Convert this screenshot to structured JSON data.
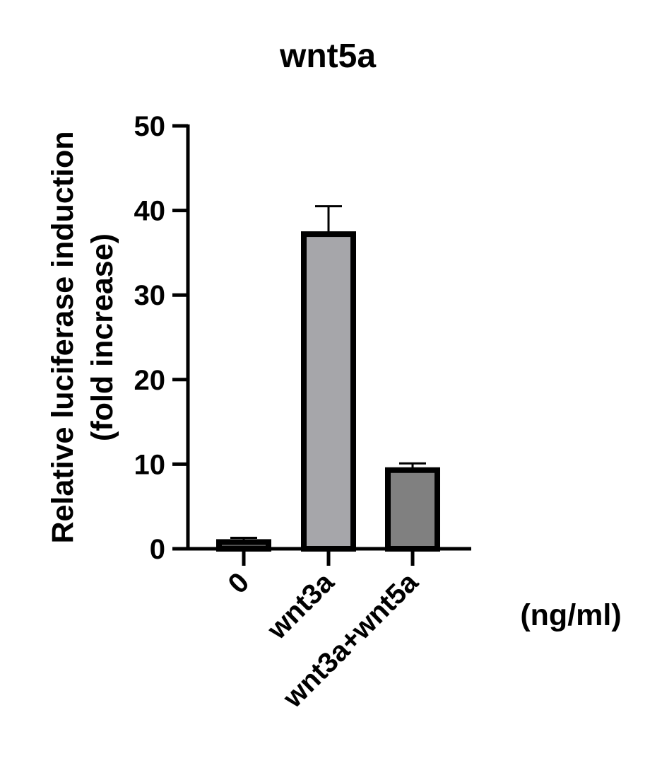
{
  "chart_data": {
    "type": "bar",
    "title": "wnt5a",
    "ylabel_line1": "Relative luciferase induction",
    "ylabel_line2": "(fold increase)",
    "xunit": "(ng/ml)",
    "categories": [
      "0",
      "wnt3a",
      "wnt3a+wnt5a"
    ],
    "values": [
      0.8,
      37.2,
      9.3
    ],
    "errors": [
      0.5,
      3.3,
      0.8
    ],
    "bar_colors": [
      "#555555",
      "#a6a6aa",
      "#808080"
    ],
    "ylim": [
      0,
      50
    ],
    "yticks": [
      "0",
      "10",
      "20",
      "30",
      "40",
      "50"
    ],
    "grid": false,
    "legend": "none"
  }
}
